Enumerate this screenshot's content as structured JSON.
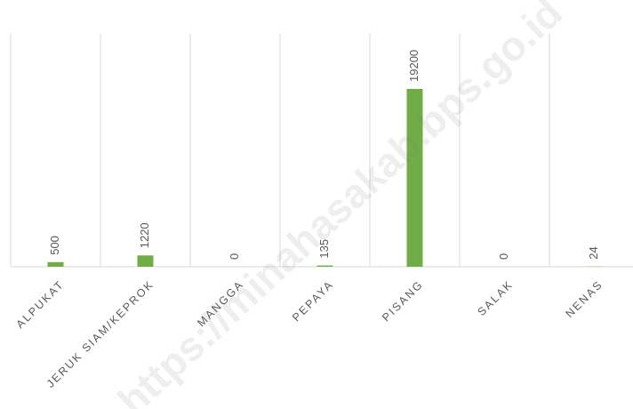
{
  "chart_data": {
    "type": "bar",
    "categories": [
      "ALPUKAT",
      "JERUK SIAM/KEPROK",
      "MANGGA",
      "PEPAYA",
      "PISANG",
      "SALAK",
      "NENAS"
    ],
    "values": [
      500,
      1220,
      0,
      135,
      19200,
      0,
      24
    ],
    "color": "#70ad47",
    "watermark": "https://minahasakab.bps.go.id"
  }
}
